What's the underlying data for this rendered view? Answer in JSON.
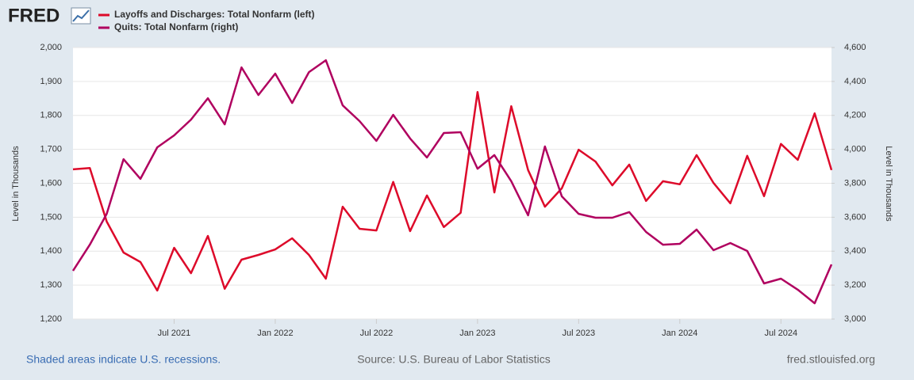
{
  "header": {
    "logo": "FRED"
  },
  "chart_data": {
    "type": "line",
    "x": [
      "2021-01",
      "2021-02",
      "2021-03",
      "2021-04",
      "2021-05",
      "2021-06",
      "2021-07",
      "2021-08",
      "2021-09",
      "2021-10",
      "2021-11",
      "2021-12",
      "2022-01",
      "2022-02",
      "2022-03",
      "2022-04",
      "2022-05",
      "2022-06",
      "2022-07",
      "2022-08",
      "2022-09",
      "2022-10",
      "2022-11",
      "2022-12",
      "2023-01",
      "2023-02",
      "2023-03",
      "2023-04",
      "2023-05",
      "2023-06",
      "2023-07",
      "2023-08",
      "2023-09",
      "2023-10",
      "2023-11",
      "2023-12",
      "2024-01",
      "2024-02",
      "2024-03",
      "2024-04",
      "2024-05",
      "2024-06",
      "2024-07",
      "2024-08",
      "2024-09",
      "2024-10"
    ],
    "series": [
      {
        "name": "Layoffs and Discharges: Total Nonfarm (left)",
        "color": "#dd0a2a",
        "axis": "y",
        "values": [
          1641,
          1645,
          1487,
          1396,
          1368,
          1284,
          1410,
          1335,
          1445,
          1289,
          1375,
          1389,
          1405,
          1438,
          1389,
          1319,
          1531,
          1466,
          1461,
          1604,
          1459,
          1564,
          1471,
          1513,
          1869,
          1573,
          1827,
          1639,
          1531,
          1585,
          1699,
          1664,
          1594,
          1655,
          1548,
          1606,
          1597,
          1683,
          1601,
          1541,
          1681,
          1562,
          1716,
          1669,
          1806,
          1639
        ]
      },
      {
        "name": "Quits: Total Nonfarm (right)",
        "color": "#b0005f",
        "axis": "y2",
        "values": [
          3284,
          3438,
          3620,
          3942,
          3826,
          4012,
          4082,
          4175,
          4301,
          4147,
          4483,
          4320,
          4446,
          4273,
          4455,
          4525,
          4259,
          4166,
          4050,
          4203,
          4064,
          3952,
          4096,
          4101,
          3886,
          3966,
          3812,
          3611,
          4017,
          3723,
          3620,
          3597,
          3597,
          3630,
          3513,
          3438,
          3443,
          3527,
          3406,
          3448,
          3401,
          3210,
          3238,
          3173,
          3093,
          3322
        ]
      }
    ],
    "xlim": [
      "2021-01",
      "2024-10"
    ],
    "xticks": [
      {
        "value": "2021-07",
        "label": "Jul 2021"
      },
      {
        "value": "2022-01",
        "label": "Jan 2022"
      },
      {
        "value": "2022-07",
        "label": "Jul 2022"
      },
      {
        "value": "2023-01",
        "label": "Jan 2023"
      },
      {
        "value": "2023-07",
        "label": "Jul 2023"
      },
      {
        "value": "2024-01",
        "label": "Jan 2024"
      },
      {
        "value": "2024-07",
        "label": "Jul 2024"
      }
    ],
    "ylim": [
      1200,
      2000
    ],
    "yticks": [
      {
        "value": 1200,
        "label": "1,200"
      },
      {
        "value": 1300,
        "label": "1,300"
      },
      {
        "value": 1400,
        "label": "1,400"
      },
      {
        "value": 1500,
        "label": "1,500"
      },
      {
        "value": 1600,
        "label": "1,600"
      },
      {
        "value": 1700,
        "label": "1,700"
      },
      {
        "value": 1800,
        "label": "1,800"
      },
      {
        "value": 1900,
        "label": "1,900"
      },
      {
        "value": 2000,
        "label": "2,000"
      }
    ],
    "y2lim": [
      3000,
      4600
    ],
    "y2ticks": [
      {
        "value": 3000,
        "label": "3,000"
      },
      {
        "value": 3200,
        "label": "3,200"
      },
      {
        "value": 3400,
        "label": "3,400"
      },
      {
        "value": 3600,
        "label": "3,600"
      },
      {
        "value": 3800,
        "label": "3,800"
      },
      {
        "value": 4000,
        "label": "4,000"
      },
      {
        "value": 4200,
        "label": "4,200"
      },
      {
        "value": 4400,
        "label": "4,400"
      },
      {
        "value": 4600,
        "label": "4,600"
      }
    ],
    "y_label": "Level in Thousands",
    "y2_label": "Level in Thousands",
    "grid": true
  },
  "footer": {
    "recessions": "Shaded areas indicate U.S. recessions.",
    "source": "Source: U.S. Bureau of Labor Statistics",
    "site": "fred.stlouisfed.org"
  }
}
